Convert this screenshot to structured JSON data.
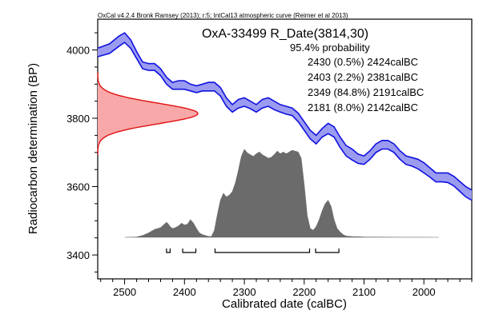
{
  "chart_data": {
    "type": "area",
    "credit": "OxCal v4.2.4 Bronk Ramsey (2013); r:5; IntCal13 atmospheric curve (Reimer et al 2013)",
    "title": "OxA-33499 R_Date(3814,30)",
    "xlabel": "Calibrated date (calBC)",
    "ylabel": "Radiocarbon determination (BP)",
    "xlim": [
      2545,
      1920
    ],
    "ylim": [
      3330,
      4090
    ],
    "x_ticks": [
      2500,
      2400,
      2300,
      2200,
      2100,
      2000
    ],
    "y_ticks": [
      3400,
      3600,
      3800,
      4000
    ],
    "colors": {
      "curve_line": "#1010e0",
      "curve_fill": "#9b9bf0",
      "radiocarbon_line": "#e01010",
      "radiocarbon_fill": "#f8a8a8",
      "posterior_fill": "#6b6b6b",
      "range_bar": "#000000"
    },
    "probability": {
      "heading": "95.4% probability",
      "ranges": [
        "2430 (0.5%) 2424calBC",
        "2403 (2.2%) 2381calBC",
        "2349 (84.8%) 2191calBC",
        "2181 (8.0%) 2142calBC"
      ]
    },
    "range_bars": [
      [
        2430,
        2424
      ],
      [
        2403,
        2381
      ],
      [
        2349,
        2191
      ],
      [
        2181,
        2142
      ]
    ],
    "calibration_curve": {
      "name": "IntCal13",
      "x": [
        2545,
        2525,
        2510,
        2500,
        2490,
        2480,
        2470,
        2460,
        2450,
        2440,
        2430,
        2420,
        2410,
        2400,
        2390,
        2380,
        2370,
        2360,
        2350,
        2340,
        2330,
        2320,
        2310,
        2300,
        2290,
        2280,
        2270,
        2260,
        2250,
        2240,
        2230,
        2220,
        2210,
        2200,
        2190,
        2180,
        2170,
        2160,
        2150,
        2140,
        2130,
        2120,
        2110,
        2100,
        2090,
        2080,
        2070,
        2060,
        2050,
        2040,
        2030,
        2020,
        2010,
        2000,
        1990,
        1980,
        1970,
        1960,
        1950,
        1940,
        1930,
        1920
      ],
      "upper": [
        4005,
        4018,
        4040,
        4050,
        4030,
        3995,
        3965,
        3960,
        3960,
        3945,
        3920,
        3905,
        3910,
        3910,
        3900,
        3895,
        3900,
        3905,
        3905,
        3890,
        3860,
        3840,
        3855,
        3860,
        3850,
        3840,
        3855,
        3860,
        3850,
        3840,
        3835,
        3830,
        3815,
        3790,
        3765,
        3750,
        3770,
        3785,
        3775,
        3745,
        3720,
        3710,
        3695,
        3690,
        3705,
        3725,
        3735,
        3735,
        3725,
        3705,
        3690,
        3685,
        3680,
        3670,
        3655,
        3640,
        3640,
        3640,
        3630,
        3615,
        3600,
        3590
      ],
      "lower": [
        3980,
        3990,
        4010,
        4022,
        4005,
        3975,
        3945,
        3940,
        3940,
        3925,
        3900,
        3885,
        3885,
        3885,
        3880,
        3875,
        3880,
        3880,
        3880,
        3865,
        3835,
        3818,
        3830,
        3835,
        3828,
        3818,
        3830,
        3835,
        3825,
        3818,
        3812,
        3808,
        3790,
        3765,
        3740,
        3725,
        3745,
        3755,
        3745,
        3715,
        3690,
        3678,
        3668,
        3665,
        3680,
        3700,
        3710,
        3710,
        3700,
        3680,
        3665,
        3660,
        3652,
        3640,
        3628,
        3614,
        3614,
        3612,
        3602,
        3586,
        3570,
        3560
      ]
    },
    "radiocarbon_distribution": {
      "mean_bp": 3814,
      "sd_bp": 30
    },
    "posterior_distribution": {
      "x": [
        2500,
        2480,
        2470,
        2460,
        2450,
        2445,
        2440,
        2435,
        2430,
        2427,
        2424,
        2420,
        2415,
        2410,
        2405,
        2400,
        2395,
        2390,
        2385,
        2380,
        2375,
        2370,
        2365,
        2360,
        2355,
        2350,
        2345,
        2340,
        2335,
        2330,
        2325,
        2320,
        2315,
        2310,
        2305,
        2300,
        2295,
        2290,
        2285,
        2280,
        2275,
        2270,
        2265,
        2260,
        2255,
        2250,
        2245,
        2240,
        2235,
        2230,
        2225,
        2220,
        2215,
        2210,
        2205,
        2200,
        2195,
        2190,
        2185,
        2180,
        2175,
        2170,
        2165,
        2160,
        2155,
        2150,
        2145,
        2140,
        2135,
        2130,
        2120,
        2100,
        2080,
        2060,
        2040,
        2020,
        2000,
        1975
      ],
      "density": [
        0,
        0.004,
        0.02,
        0.05,
        0.09,
        0.1,
        0.11,
        0.14,
        0.17,
        0.15,
        0.12,
        0.1,
        0.11,
        0.13,
        0.16,
        0.14,
        0.15,
        0.2,
        0.16,
        0.1,
        0.05,
        0.03,
        0.02,
        0.01,
        0.01,
        0.08,
        0.26,
        0.42,
        0.5,
        0.46,
        0.48,
        0.52,
        0.62,
        0.76,
        0.92,
        1.0,
        0.96,
        0.94,
        0.92,
        0.95,
        0.97,
        0.94,
        0.92,
        0.9,
        0.91,
        0.94,
        0.98,
        0.95,
        0.97,
        0.95,
        0.97,
        0.99,
        0.98,
        0.97,
        0.9,
        0.6,
        0.25,
        0.1,
        0.08,
        0.12,
        0.2,
        0.3,
        0.38,
        0.42,
        0.35,
        0.2,
        0.1,
        0.06,
        0.03,
        0.015,
        0.008,
        0.004,
        0.003,
        0.002,
        0.001,
        0.001,
        0.001,
        0
      ]
    }
  }
}
